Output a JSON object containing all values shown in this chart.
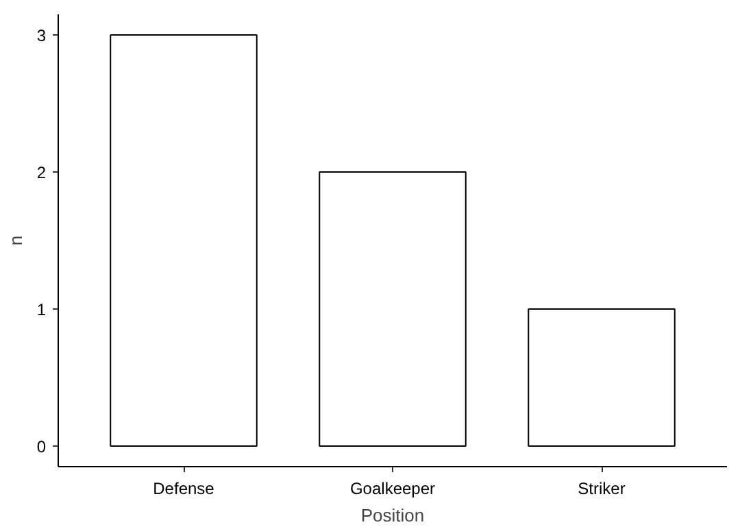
{
  "chart_data": {
    "type": "bar",
    "xlabel": "Position",
    "ylabel": "n",
    "categories": [
      "Defense",
      "Goalkeeper",
      "Striker"
    ],
    "values": [
      3,
      2,
      1
    ],
    "color": "#ffffff",
    "ylim": [
      -0.15,
      3.15
    ],
    "yticks": [
      0,
      1,
      2,
      3
    ],
    "grid": false
  }
}
